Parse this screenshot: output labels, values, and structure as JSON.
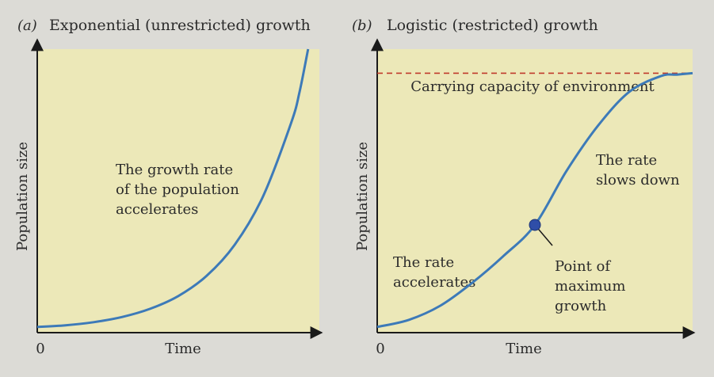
{
  "colors": {
    "plot_background": "#ece8b8",
    "page_background": "#dcdbd6",
    "curve": "#3d7ab8",
    "capacity_line": "#c0392b",
    "max_point": "#2f4ea8",
    "text": "#2b2b2b"
  },
  "panels": [
    {
      "id": "a",
      "letter": "(a)",
      "title": "Exponential (unrestricted) growth",
      "ylabel": "Population size",
      "xlabel": "Time",
      "origin_label": "0",
      "annotation": [
        "The growth rate",
        "of the population",
        "accelerates"
      ]
    },
    {
      "id": "b",
      "letter": "(b)",
      "title": "Logistic (restricted) growth",
      "ylabel": "Population size",
      "xlabel": "Time",
      "origin_label": "0",
      "capacity_label": "Carrying capacity of environment",
      "annotation_left": [
        "The rate",
        "accelerates"
      ],
      "annotation_right": [
        "The rate",
        "slows down"
      ],
      "point_label": [
        "Point of",
        "maximum",
        "growth"
      ]
    }
  ],
  "chart_data": [
    {
      "type": "line",
      "title": "Exponential (unrestricted) growth",
      "xlabel": "Time",
      "ylabel": "Population size",
      "xlim": [
        0,
        10
      ],
      "ylim": [
        0,
        10
      ],
      "series": [
        {
          "x": [
            0,
            1,
            2,
            3,
            4,
            5,
            6,
            7,
            8,
            9,
            9.3,
            9.6
          ],
          "values": [
            0.2,
            0.26,
            0.37,
            0.55,
            0.84,
            1.29,
            2.0,
            3.1,
            4.8,
            7.4,
            8.5,
            10.0
          ]
        }
      ]
    },
    {
      "type": "line",
      "title": "Logistic (restricted) growth",
      "xlabel": "Time",
      "ylabel": "Population size",
      "xlim": [
        0,
        10
      ],
      "ylim": [
        0,
        10
      ],
      "carrying_capacity": 9.15,
      "max_growth_point": {
        "x": 5.0,
        "y": 3.8
      },
      "series": [
        {
          "x": [
            0,
            1,
            2,
            3,
            4,
            5,
            6,
            7,
            8,
            9,
            9.5,
            10
          ],
          "values": [
            0.2,
            0.45,
            0.95,
            1.75,
            2.7,
            3.8,
            5.7,
            7.3,
            8.5,
            9.05,
            9.1,
            9.15
          ]
        }
      ]
    }
  ]
}
